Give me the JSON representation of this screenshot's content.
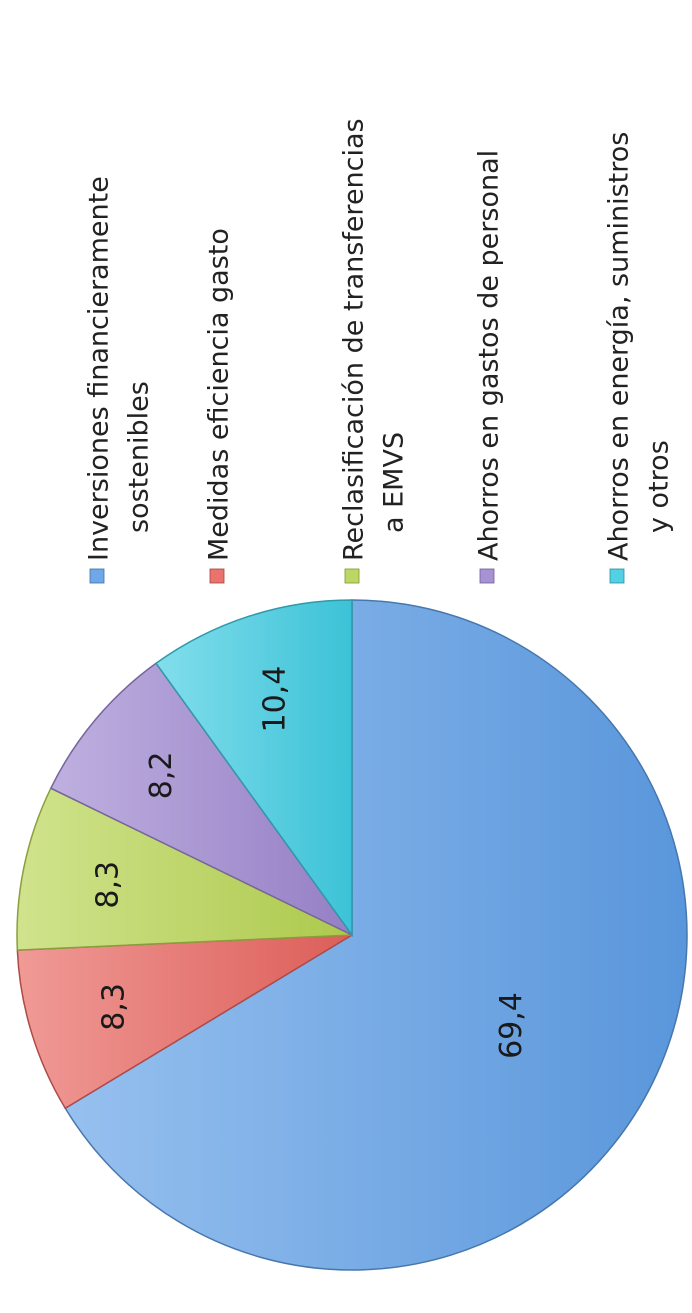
{
  "chart_data": {
    "type": "pie",
    "orientation": "rotated 90° counter-clockwise",
    "legend_position": "right",
    "series": [
      {
        "name": "Inversiones financieramente sostenibles",
        "value": 69.4,
        "label": "69,4",
        "color": "#5e9ee6",
        "legend_lines": [
          "Inversiones financieramente",
          "sostenibles"
        ]
      },
      {
        "name": "Medidas eficiencia gasto",
        "value": 8.3,
        "label": "8,3",
        "color": "#e8635e",
        "legend_lines": [
          "Medidas eficiencia gasto"
        ]
      },
      {
        "name": "Reclasificación de transferencias a EMVS",
        "value": 8.3,
        "label": "8,3",
        "color": "#b6d450",
        "legend_lines": [
          "Reclasificación de transferencias",
          "a EMVS"
        ]
      },
      {
        "name": "Ahorros en gastos de personal",
        "value": 8.2,
        "label": "8,2",
        "color": "#9d86cf",
        "legend_lines": [
          "Ahorros en gastos de personal"
        ]
      },
      {
        "name": "Ahorros en energía, suministros y otros",
        "value": 10.4,
        "label": "10,4",
        "color": "#3fcce2",
        "legend_lines": [
          "Ahorros en energía, suministros",
          "y otros"
        ]
      }
    ]
  }
}
